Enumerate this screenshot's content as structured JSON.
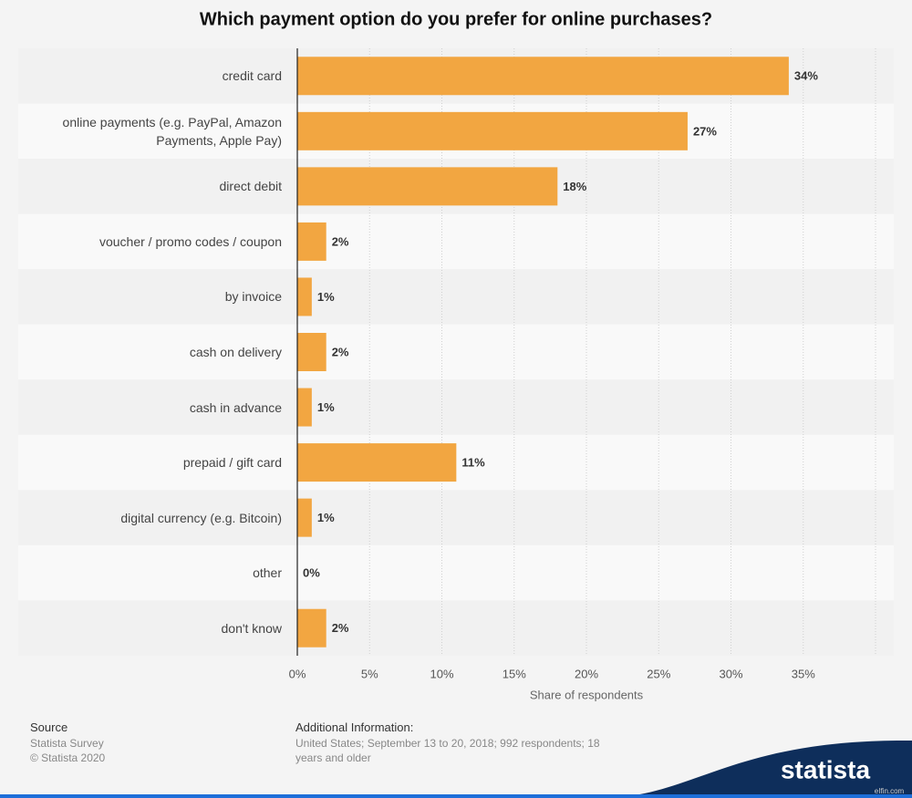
{
  "chart_data": {
    "type": "bar",
    "orientation": "horizontal",
    "title": "Which payment option do you prefer for online purchases?",
    "categories": [
      "credit card",
      "online payments (e.g. PayPal, Amazon Payments, Apple Pay)",
      "direct debit",
      "voucher / promo codes / coupon",
      "by invoice",
      "cash on delivery",
      "cash in advance",
      "prepaid / gift card",
      "digital currency (e.g. Bitcoin)",
      "other",
      "don't know"
    ],
    "values": [
      34,
      27,
      18,
      2,
      1,
      2,
      1,
      11,
      1,
      0,
      2
    ],
    "value_labels": [
      "34%",
      "27%",
      "18%",
      "2%",
      "1%",
      "2%",
      "1%",
      "11%",
      "1%",
      "0%",
      "2%"
    ],
    "color": "#f2a641",
    "xlim": [
      0,
      40
    ],
    "xticks": [
      {
        "value": 0,
        "label": "0%"
      },
      {
        "value": 5,
        "label": "5%"
      },
      {
        "value": 10,
        "label": "10%"
      },
      {
        "value": 15,
        "label": "15%"
      },
      {
        "value": 20,
        "label": "20%"
      },
      {
        "value": 25,
        "label": "25%"
      },
      {
        "value": 30,
        "label": "30%"
      },
      {
        "value": 35,
        "label": "35%"
      }
    ],
    "xlabel": "Share of respondents",
    "grid": true
  },
  "footer": {
    "source_title": "Source",
    "source_lines": [
      "Statista Survey",
      "© Statista 2020"
    ],
    "info_title": "Additional Information:",
    "info_text": "United States; September 13 to 20, 2018; 992 respondents; 18 years and older",
    "logo": "statista",
    "watermark": "eIfin.com"
  }
}
